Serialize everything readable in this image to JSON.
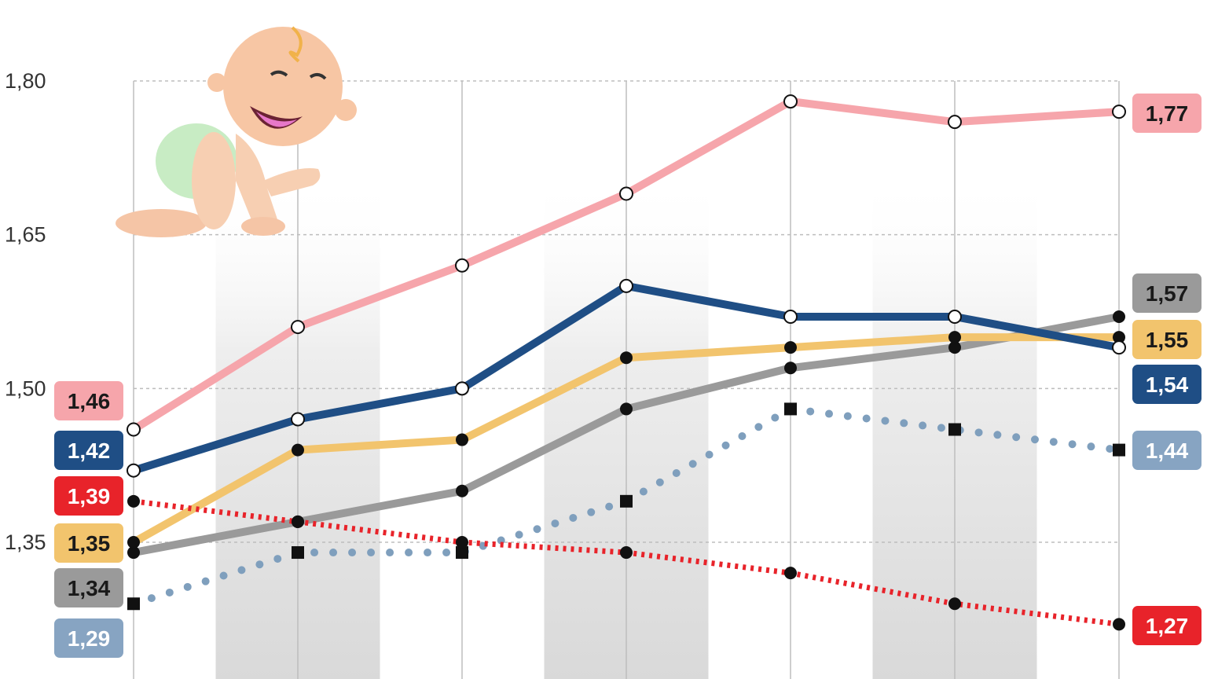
{
  "chart_data": {
    "type": "line",
    "x": [
      1,
      2,
      3,
      4,
      5,
      6,
      7
    ],
    "ylim": [
      1.245,
      1.826
    ],
    "yticks": [
      {
        "value": 1.8,
        "label": "1,80"
      },
      {
        "value": 1.65,
        "label": "1,65"
      },
      {
        "value": 1.5,
        "label": "1,50"
      },
      {
        "value": 1.35,
        "label": "1,35"
      }
    ],
    "grid": true,
    "series": [
      {
        "id": "pink",
        "color": "#f6a5ab",
        "style": "solid",
        "marker": "open-circle",
        "values": [
          1.46,
          1.56,
          1.62,
          1.69,
          1.78,
          1.76,
          1.77
        ],
        "start_label": "1,46",
        "end_label": "1,77",
        "start_badge_color": "#f6a5ab",
        "end_badge_color": "#f6a5ab",
        "end_text_color": "#1a1a1a"
      },
      {
        "id": "navy",
        "color": "#1f4e85",
        "style": "solid",
        "marker": "open-circle",
        "values": [
          1.42,
          1.47,
          1.5,
          1.6,
          1.57,
          1.57,
          1.54
        ],
        "start_label": "1,42",
        "end_label": "1,54",
        "start_badge_color": "#1f4e85",
        "end_badge_color": "#1f4e85",
        "end_text_color": "#ffffff"
      },
      {
        "id": "yellow",
        "color": "#f2c46d",
        "style": "solid",
        "marker": "dot",
        "values": [
          1.35,
          1.44,
          1.45,
          1.53,
          1.54,
          1.55,
          1.55
        ],
        "start_label": "1,35",
        "end_label": "1,55",
        "start_badge_color": "#f2c46d",
        "end_badge_color": "#f2c46d",
        "end_text_color": "#1a1a1a"
      },
      {
        "id": "gray",
        "color": "#9a9a9a",
        "style": "solid",
        "marker": "dot",
        "values": [
          1.34,
          1.37,
          1.4,
          1.48,
          1.52,
          1.54,
          1.57
        ],
        "start_label": "1,34",
        "end_label": "1,57",
        "start_badge_color": "#9a9a9a",
        "end_badge_color": "#9a9a9a",
        "end_text_color": "#1a1a1a"
      },
      {
        "id": "lightblue",
        "color": "#7f9fbd",
        "style": "dotted",
        "marker": "square",
        "values": [
          1.29,
          1.34,
          1.34,
          1.39,
          1.48,
          1.46,
          1.44
        ],
        "start_label": "1,29",
        "end_label": "1,44",
        "start_badge_color": "#87a4c2",
        "end_badge_color": "#87a4c2",
        "end_text_color": "#ffffff"
      },
      {
        "id": "red",
        "color": "#e8232a",
        "style": "dashed",
        "marker": "dot",
        "values": [
          1.39,
          1.37,
          1.35,
          1.34,
          1.32,
          1.29,
          1.27
        ],
        "start_label": "1,39",
        "end_label": "1,27",
        "start_badge_color": "#e8232a",
        "end_badge_color": "#e8232a",
        "end_text_color": "#ffffff"
      }
    ]
  }
}
